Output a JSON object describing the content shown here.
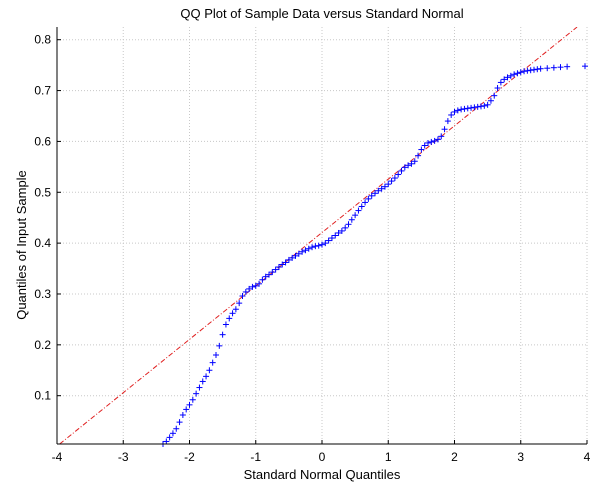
{
  "chart_data": {
    "type": "scatter",
    "title": "QQ Plot of Sample Data versus Standard Normal",
    "xlabel": "Standard Normal Quantiles",
    "ylabel": "Quantiles of Input Sample",
    "xlim": [
      -4,
      4
    ],
    "ylim": [
      0.005,
      0.825
    ],
    "xticks": [
      -4,
      -3,
      -2,
      -1,
      0,
      1,
      2,
      3,
      4
    ],
    "yticks": [
      0.1,
      0.2,
      0.3,
      0.4,
      0.5,
      0.6,
      0.7,
      0.8
    ],
    "grid": true,
    "marker": "+",
    "marker_color": "#0000ff",
    "reference_line": {
      "style": "dash-dot",
      "color": "#e02020",
      "x": [
        -3.96,
        3.85
      ],
      "y": [
        0.005,
        0.825
      ]
    },
    "series": [
      {
        "points": [
          [
            -2.4,
            0.005
          ],
          [
            -2.35,
            0.01
          ],
          [
            -2.3,
            0.018
          ],
          [
            -2.25,
            0.026
          ],
          [
            -2.2,
            0.035
          ],
          [
            -2.15,
            0.048
          ],
          [
            -2.1,
            0.062
          ],
          [
            -2.05,
            0.073
          ],
          [
            -2.0,
            0.082
          ],
          [
            -1.95,
            0.092
          ],
          [
            -1.9,
            0.104
          ],
          [
            -1.85,
            0.116
          ],
          [
            -1.8,
            0.128
          ],
          [
            -1.75,
            0.138
          ],
          [
            -1.7,
            0.15
          ],
          [
            -1.65,
            0.165
          ],
          [
            -1.6,
            0.18
          ],
          [
            -1.55,
            0.198
          ],
          [
            -1.5,
            0.22
          ],
          [
            -1.45,
            0.24
          ],
          [
            -1.4,
            0.252
          ],
          [
            -1.35,
            0.262
          ],
          [
            -1.3,
            0.27
          ],
          [
            -1.25,
            0.282
          ],
          [
            -1.2,
            0.296
          ],
          [
            -1.15,
            0.304
          ],
          [
            -1.1,
            0.31
          ],
          [
            -1.05,
            0.314
          ],
          [
            -1.0,
            0.316
          ],
          [
            -0.95,
            0.32
          ],
          [
            -0.9,
            0.328
          ],
          [
            -0.85,
            0.334
          ],
          [
            -0.8,
            0.338
          ],
          [
            -0.75,
            0.343
          ],
          [
            -0.7,
            0.348
          ],
          [
            -0.65,
            0.353
          ],
          [
            -0.6,
            0.358
          ],
          [
            -0.55,
            0.362
          ],
          [
            -0.5,
            0.367
          ],
          [
            -0.45,
            0.371
          ],
          [
            -0.4,
            0.375
          ],
          [
            -0.35,
            0.379
          ],
          [
            -0.3,
            0.383
          ],
          [
            -0.25,
            0.386
          ],
          [
            -0.2,
            0.389
          ],
          [
            -0.15,
            0.392
          ],
          [
            -0.1,
            0.394
          ],
          [
            -0.05,
            0.395
          ],
          [
            0.0,
            0.397
          ],
          [
            0.05,
            0.4
          ],
          [
            0.1,
            0.405
          ],
          [
            0.15,
            0.41
          ],
          [
            0.2,
            0.415
          ],
          [
            0.25,
            0.42
          ],
          [
            0.3,
            0.424
          ],
          [
            0.35,
            0.43
          ],
          [
            0.4,
            0.437
          ],
          [
            0.45,
            0.446
          ],
          [
            0.5,
            0.455
          ],
          [
            0.55,
            0.464
          ],
          [
            0.6,
            0.472
          ],
          [
            0.65,
            0.48
          ],
          [
            0.7,
            0.487
          ],
          [
            0.75,
            0.493
          ],
          [
            0.8,
            0.498
          ],
          [
            0.85,
            0.503
          ],
          [
            0.9,
            0.507
          ],
          [
            0.95,
            0.511
          ],
          [
            1.0,
            0.516
          ],
          [
            1.05,
            0.522
          ],
          [
            1.1,
            0.528
          ],
          [
            1.15,
            0.535
          ],
          [
            1.2,
            0.542
          ],
          [
            1.25,
            0.549
          ],
          [
            1.3,
            0.553
          ],
          [
            1.35,
            0.556
          ],
          [
            1.4,
            0.561
          ],
          [
            1.45,
            0.572
          ],
          [
            1.5,
            0.584
          ],
          [
            1.55,
            0.592
          ],
          [
            1.6,
            0.597
          ],
          [
            1.65,
            0.599
          ],
          [
            1.7,
            0.601
          ],
          [
            1.75,
            0.604
          ],
          [
            1.8,
            0.61
          ],
          [
            1.85,
            0.624
          ],
          [
            1.9,
            0.64
          ],
          [
            1.95,
            0.652
          ],
          [
            2.0,
            0.658
          ],
          [
            2.05,
            0.661
          ],
          [
            2.1,
            0.663
          ],
          [
            2.15,
            0.664
          ],
          [
            2.2,
            0.665
          ],
          [
            2.25,
            0.666
          ],
          [
            2.3,
            0.667
          ],
          [
            2.35,
            0.668
          ],
          [
            2.4,
            0.669
          ],
          [
            2.45,
            0.67
          ],
          [
            2.5,
            0.672
          ],
          [
            2.55,
            0.68
          ],
          [
            2.6,
            0.69
          ],
          [
            2.65,
            0.705
          ],
          [
            2.7,
            0.716
          ],
          [
            2.75,
            0.722
          ],
          [
            2.8,
            0.726
          ],
          [
            2.85,
            0.729
          ],
          [
            2.9,
            0.732
          ],
          [
            2.95,
            0.734
          ],
          [
            3.0,
            0.736
          ],
          [
            3.05,
            0.738
          ],
          [
            3.1,
            0.739
          ],
          [
            3.15,
            0.74
          ],
          [
            3.2,
            0.741
          ],
          [
            3.25,
            0.742
          ],
          [
            3.3,
            0.743
          ],
          [
            3.4,
            0.744
          ],
          [
            3.5,
            0.745
          ],
          [
            3.6,
            0.746
          ],
          [
            3.7,
            0.747
          ],
          [
            3.97,
            0.748
          ]
        ]
      }
    ]
  }
}
